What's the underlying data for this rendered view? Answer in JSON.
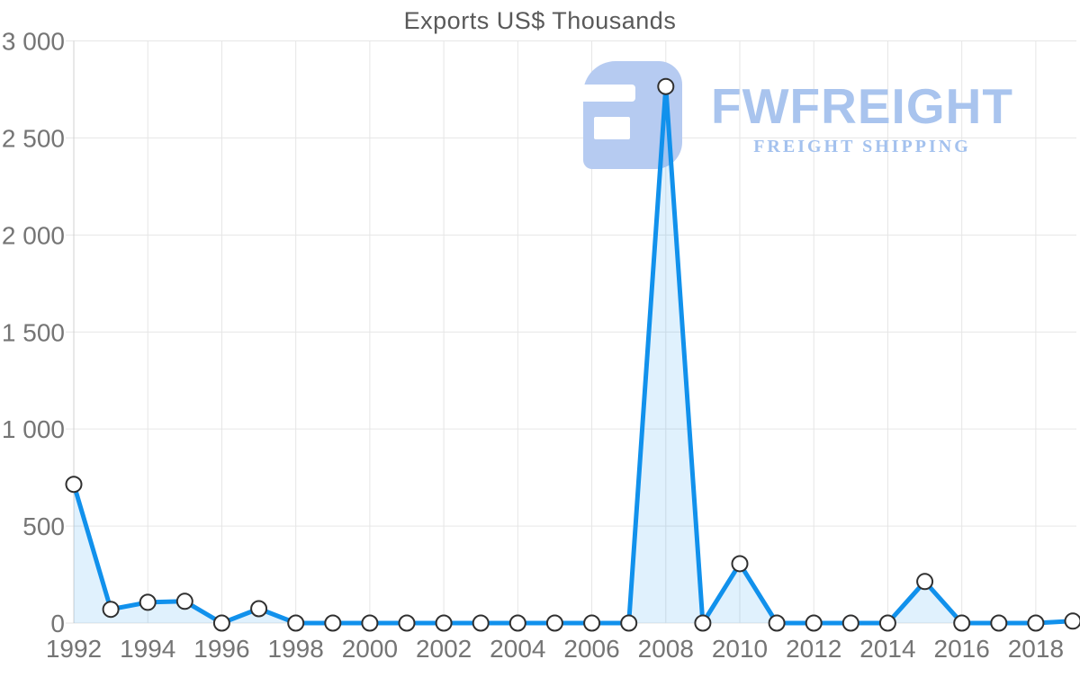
{
  "chart_data": {
    "type": "area",
    "title": "Exports US$ Thousands",
    "xlabel": "",
    "ylabel": "",
    "x": [
      1992,
      1993,
      1994,
      1995,
      1996,
      1997,
      1998,
      1999,
      2000,
      2001,
      2002,
      2003,
      2004,
      2005,
      2006,
      2007,
      2008,
      2009,
      2010,
      2011,
      2012,
      2013,
      2014,
      2015,
      2016,
      2017,
      2018,
      2019
    ],
    "series": [
      {
        "name": "Exports US$ Thousands",
        "values": [
          715,
          71,
          107,
          112,
          0,
          74,
          0,
          0,
          0,
          0,
          0,
          0,
          0,
          0,
          0,
          0,
          2765,
          0,
          306,
          0,
          0,
          0,
          0,
          214,
          0,
          0,
          0,
          10
        ]
      }
    ],
    "ylim": [
      0,
      3000
    ],
    "y_ticks": [
      0,
      500,
      1000,
      1500,
      2000,
      2500,
      3000
    ],
    "y_tick_labels": [
      "0",
      "500",
      "1 000",
      "1 500",
      "2 000",
      "2 500",
      "3 000"
    ],
    "x_tick_years": [
      1992,
      1994,
      1996,
      1998,
      2000,
      2002,
      2004,
      2006,
      2008,
      2010,
      2012,
      2014,
      2016,
      2018
    ],
    "grid": true,
    "legend_position": "none",
    "marker": "circle-open",
    "colors": {
      "line": "#1191ec",
      "area": "rgba(17,145,236,0.13)",
      "marker_fill": "#ffffff",
      "marker_stroke": "#303030",
      "grid": "#e6e6e6",
      "axis": "#d0d0d0",
      "tick_label": "#757575",
      "title": "#595959"
    }
  },
  "watermark": {
    "text": "FWFREIGHT",
    "subtext": "FREIGHT SHIPPING",
    "color": "#a9c4ee"
  }
}
